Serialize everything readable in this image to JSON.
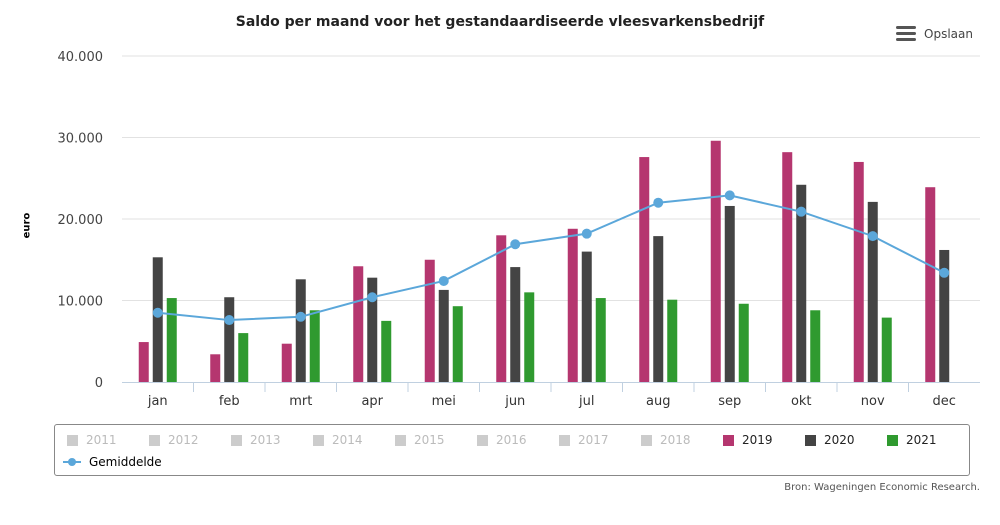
{
  "header": {
    "title": "Saldo per maand voor het gestandaardiseerde vleesvarkensbedrijf",
    "save_label": "Opslaan"
  },
  "source": "Bron: Wageningen Economic Research.",
  "chart_data": {
    "type": "bar",
    "title": "Saldo per maand voor het gestandaardiseerde vleesvarkensbedrijf",
    "xlabel": "",
    "ylabel": "euro",
    "ylim": [
      0,
      40000
    ],
    "yticks": [
      "0",
      "10.000",
      "20.000",
      "30.000",
      "40.000"
    ],
    "categories": [
      "jan",
      "feb",
      "mrt",
      "apr",
      "mei",
      "jun",
      "jul",
      "aug",
      "sep",
      "okt",
      "nov",
      "dec"
    ],
    "series": [
      {
        "name": "2019",
        "type": "bar",
        "color": "#b5366f",
        "values": [
          4900,
          3400,
          4700,
          14200,
          15000,
          18000,
          18800,
          27600,
          29600,
          28200,
          27000,
          23900
        ]
      },
      {
        "name": "2020",
        "type": "bar",
        "color": "#444444",
        "values": [
          15300,
          10400,
          12600,
          12800,
          11300,
          14100,
          16000,
          17900,
          21600,
          24200,
          22100,
          16200
        ]
      },
      {
        "name": "2021",
        "type": "bar",
        "color": "#2f9a2f",
        "values": [
          10300,
          6000,
          8800,
          7500,
          9300,
          11000,
          10300,
          10100,
          9600,
          8800,
          7900,
          null
        ]
      },
      {
        "name": "Gemiddelde",
        "type": "line",
        "color": "#5ba7da",
        "values": [
          8500,
          7600,
          8000,
          10400,
          12400,
          16900,
          18200,
          22000,
          22900,
          20900,
          17900,
          13400
        ]
      }
    ],
    "legend": {
      "placement": "bottom",
      "hidden_items": [
        "2011",
        "2012",
        "2013",
        "2014",
        "2015",
        "2016",
        "2017",
        "2018"
      ],
      "hidden_color": "#cccccc"
    }
  }
}
